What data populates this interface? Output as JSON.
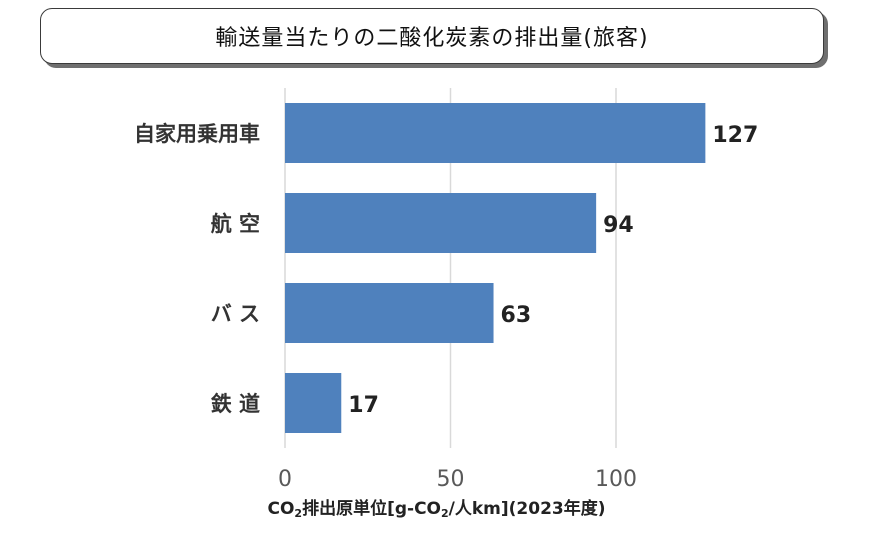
{
  "chart_data": {
    "type": "bar",
    "orientation": "horizontal",
    "title": "輸送量当たりの二酸化炭素の排出量(旅客)",
    "categories": [
      "自家用乗用車",
      "航 空",
      "バ ス",
      "鉄 道"
    ],
    "values": [
      127,
      94,
      63,
      17
    ],
    "data_labels": [
      "127",
      "94",
      "63",
      "17"
    ],
    "xlim": [
      0,
      130
    ],
    "xticks": [
      0,
      50,
      100
    ],
    "xtick_labels": [
      "0",
      "50",
      "100"
    ],
    "xlabel": {
      "part1": "CO",
      "sub1": "2",
      "part2": "排出原単位[g-CO",
      "sub2": "2",
      "part3": "/人km](2023年度)"
    },
    "grid": "vertical",
    "bar_color": "#4f81bd",
    "grid_color": "#d9d9d9"
  }
}
